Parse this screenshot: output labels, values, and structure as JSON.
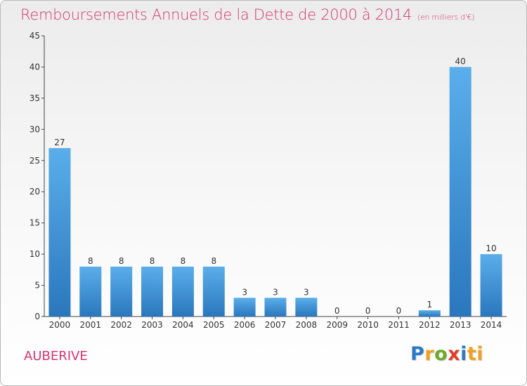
{
  "page": {
    "title": "Remboursements Annuels de la Dette de 2000 à 2014",
    "unit": "(en milliers d'€)",
    "commune": "AUBERIVE",
    "logo": [
      "P",
      "r",
      "o",
      "x",
      "i",
      "ti"
    ]
  },
  "chart_data": {
    "type": "bar",
    "title": "Remboursements Annuels de la Dette de 2000 à 2014",
    "subtitle": "(en milliers d'€)",
    "xlabel": "",
    "ylabel": "",
    "categories": [
      "2000",
      "2001",
      "2002",
      "2003",
      "2004",
      "2005",
      "2006",
      "2007",
      "2008",
      "2009",
      "2010",
      "2011",
      "2012",
      "2013",
      "2014"
    ],
    "values": [
      27,
      8,
      8,
      8,
      8,
      8,
      3,
      3,
      3,
      0,
      0,
      0,
      1,
      40,
      10
    ],
    "ylim": [
      0,
      45
    ],
    "yticks": [
      0,
      5,
      10,
      15,
      20,
      25,
      30,
      35,
      40,
      45
    ],
    "grid": false,
    "bar_color": "#3d8fd8",
    "title_color": "#d6356f"
  }
}
